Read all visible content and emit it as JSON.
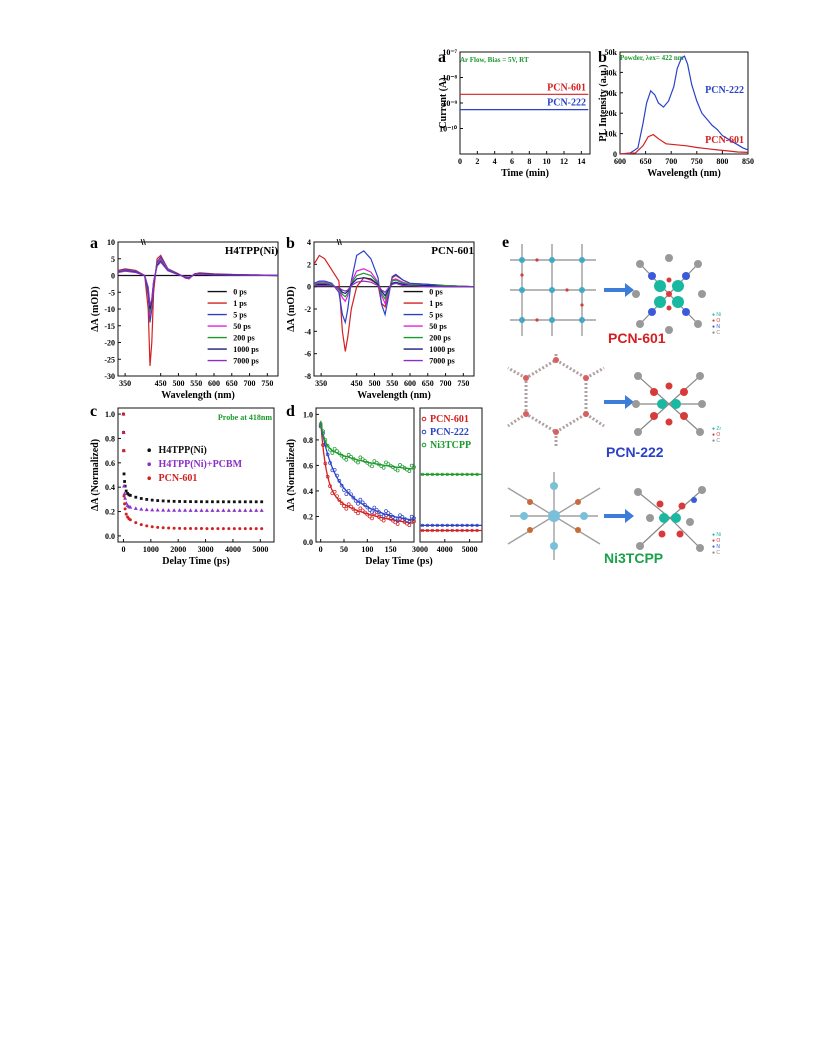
{
  "top_panels": {
    "a": {
      "letter": "a",
      "note": "Ar Flow, Bias = 5V, RT"
    },
    "b": {
      "letter": "b",
      "note": "Powder, λex= 422 nm"
    }
  },
  "bottom_panels": {
    "a": {
      "letter": "a",
      "title": "H4TPP(Ni)"
    },
    "b": {
      "letter": "b",
      "title": "PCN-601"
    },
    "c": {
      "letter": "c",
      "note": "Probe at 418nm"
    },
    "d": {
      "letter": "d"
    },
    "e": {
      "letter": "e",
      "labels": [
        "PCN-601",
        "PCN-222",
        "Ni3TCPP"
      ],
      "label_colors": [
        "#d42020",
        "#2a42c8",
        "#19a24a"
      ]
    }
  },
  "chart_data": [
    {
      "id": "top-a",
      "type": "line",
      "xlabel": "Time (min)",
      "ylabel": "Current (A)",
      "xlim": [
        0,
        15
      ],
      "ylim_log": [
        1e-11,
        1e-07
      ],
      "yscale": "log",
      "xticks": [
        "0",
        "2",
        "4",
        "6",
        "8",
        "10",
        "12",
        "14"
      ],
      "yticks": [
        "10⁻⁷",
        "10⁻⁸",
        "10⁻⁹",
        "10⁻¹⁰"
      ],
      "series": [
        {
          "name": "PCN-601",
          "color": "#d42020",
          "x": [
            0,
            14.8
          ],
          "y": [
            2.2e-09,
            2.2e-09
          ]
        },
        {
          "name": "PCN-222",
          "color": "#2a42c8",
          "x": [
            0,
            14.8
          ],
          "y": [
            5.5e-10,
            5.5e-10
          ]
        }
      ]
    },
    {
      "id": "top-b",
      "type": "line",
      "xlabel": "Wavelength (nm)",
      "ylabel": "PL Intensity (a.u.)",
      "xlim": [
        600,
        850
      ],
      "ylim": [
        0,
        50000
      ],
      "xticks": [
        "600",
        "650",
        "700",
        "750",
        "800",
        "850"
      ],
      "yticks": [
        "0",
        "10k",
        "20k",
        "30k",
        "40k",
        "50k"
      ],
      "series": [
        {
          "name": "PCN-222",
          "color": "#2a42c8",
          "x": [
            600,
            620,
            635,
            645,
            652,
            660,
            668,
            675,
            685,
            695,
            705,
            712,
            720,
            726,
            732,
            740,
            750,
            760,
            770,
            780,
            790,
            800,
            810,
            820,
            830,
            840,
            850
          ],
          "y": [
            0,
            500,
            3000,
            15000,
            25000,
            31000,
            29000,
            25000,
            23000,
            26000,
            33000,
            42000,
            47000,
            48000,
            44000,
            34000,
            26000,
            20000,
            17000,
            14000,
            12000,
            9000,
            7500,
            6000,
            4500,
            3000,
            2000
          ]
        },
        {
          "name": "PCN-601",
          "color": "#d42020",
          "x": [
            600,
            630,
            645,
            655,
            665,
            675,
            690,
            710,
            730,
            750,
            770,
            790,
            810,
            830,
            850
          ],
          "y": [
            0,
            500,
            4000,
            8500,
            9500,
            7500,
            5000,
            4500,
            4000,
            3200,
            2600,
            2000,
            1500,
            1000,
            800
          ]
        }
      ]
    },
    {
      "id": "bottom-a",
      "type": "line",
      "xlabel": "Wavelength (nm)",
      "ylabel": "ΔA (mOD)",
      "xlim": [
        330,
        780
      ],
      "ylim": [
        -30,
        10
      ],
      "xticks": [
        "350",
        "450",
        "500",
        "550",
        "600",
        "650",
        "700",
        "750"
      ],
      "yticks": [
        "10",
        "5",
        "0",
        "-5",
        "-10",
        "-15",
        "-20",
        "-25",
        "-30"
      ],
      "legend": [
        "0 ps",
        "1 ps",
        "5 ps",
        "50 ps",
        "200 ps",
        "1000 ps",
        "7000 ps"
      ],
      "series": [
        {
          "name": "0 ps",
          "color": "#111111",
          "x": [
            330,
            400,
            430,
            500,
            560,
            640,
            780
          ],
          "y": [
            0,
            0,
            0,
            0,
            0,
            0,
            0
          ]
        },
        {
          "name": "1 ps",
          "color": "#d42020",
          "x": [
            330,
            350,
            380,
            405,
            415,
            420,
            425,
            430,
            440,
            450,
            470,
            500,
            520,
            530,
            545,
            560,
            600,
            650,
            700,
            780
          ],
          "y": [
            1.5,
            2,
            1.5,
            0,
            -10,
            -27,
            -20,
            -5,
            5,
            6,
            2,
            0.5,
            -0.8,
            -1,
            0.5,
            0.8,
            0.5,
            0.3,
            0.2,
            0
          ]
        },
        {
          "name": "5 ps",
          "color": "#2a42c8",
          "x": [
            330,
            350,
            380,
            405,
            415,
            420,
            425,
            430,
            440,
            450,
            470,
            500,
            520,
            530,
            545,
            560,
            600,
            650,
            700,
            780
          ],
          "y": [
            1.3,
            1.8,
            1.3,
            0,
            -6,
            -14,
            -10,
            -3,
            4,
            5.5,
            2,
            0.4,
            -0.7,
            -0.9,
            0.4,
            0.7,
            0.4,
            0.3,
            0.2,
            0
          ]
        },
        {
          "name": "50 ps",
          "color": "#e020e0",
          "x": [
            330,
            350,
            380,
            405,
            415,
            420,
            425,
            430,
            440,
            450,
            470,
            500,
            520,
            530,
            545,
            560,
            600,
            650,
            700,
            780
          ],
          "y": [
            1.2,
            1.6,
            1.2,
            0,
            -5,
            -12,
            -9,
            -2.5,
            3.5,
            5,
            1.8,
            0.3,
            -0.6,
            -0.8,
            0.4,
            0.6,
            0.3,
            0.2,
            0.1,
            0
          ]
        },
        {
          "name": "200 ps",
          "color": "#1a9a2a",
          "x": [
            330,
            350,
            380,
            405,
            415,
            420,
            425,
            430,
            440,
            450,
            470,
            500,
            520,
            530,
            545,
            560,
            600,
            650,
            700,
            780
          ],
          "y": [
            1.1,
            1.5,
            1.1,
            0,
            -4.5,
            -11,
            -8,
            -2,
            3.2,
            4.5,
            1.6,
            0.3,
            -0.5,
            -0.7,
            0.3,
            0.5,
            0.3,
            0.2,
            0.1,
            0
          ]
        },
        {
          "name": "1000 ps",
          "color": "#1a1a80",
          "x": [
            330,
            350,
            380,
            405,
            415,
            420,
            425,
            430,
            440,
            450,
            470,
            500,
            520,
            530,
            545,
            560,
            600,
            650,
            700,
            780
          ],
          "y": [
            1,
            1.4,
            1,
            0,
            -4,
            -10,
            -7.5,
            -2,
            3,
            4.2,
            1.5,
            0.3,
            -0.5,
            -0.6,
            0.3,
            0.5,
            0.3,
            0.2,
            0.1,
            0
          ]
        },
        {
          "name": "7000 ps",
          "color": "#8a30c8",
          "x": [
            330,
            350,
            380,
            405,
            415,
            420,
            425,
            430,
            440,
            450,
            470,
            500,
            520,
            530,
            545,
            560,
            600,
            650,
            700,
            780
          ],
          "y": [
            0.9,
            1.3,
            0.9,
            0,
            -3.5,
            -9,
            -7,
            -1.8,
            2.8,
            4,
            1.4,
            0.2,
            -0.4,
            -0.5,
            0.3,
            0.4,
            0.2,
            0.1,
            0.1,
            0
          ]
        }
      ]
    },
    {
      "id": "bottom-b",
      "type": "line",
      "xlabel": "Wavelength (nm)",
      "ylabel": "ΔA (mOD)",
      "xlim": [
        330,
        780
      ],
      "ylim": [
        -8,
        4
      ],
      "xticks": [
        "350",
        "450",
        "500",
        "550",
        "600",
        "650",
        "700",
        "750"
      ],
      "yticks": [
        "4",
        "2",
        "0",
        "-2",
        "-4",
        "-6",
        "-8"
      ],
      "legend": [
        "0 ps",
        "1 ps",
        "5 ps",
        "50 ps",
        "200 ps",
        "1000 ps",
        "7000 ps"
      ],
      "series": [
        {
          "name": "0 ps",
          "color": "#111111",
          "x": [
            330,
            450,
            600,
            780
          ],
          "y": [
            0,
            0,
            0,
            0
          ]
        },
        {
          "name": "1 ps",
          "color": "#d42020",
          "x": [
            330,
            345,
            360,
            380,
            400,
            410,
            418,
            425,
            435,
            450,
            470,
            490,
            510,
            520,
            530,
            540,
            550,
            560,
            580,
            600,
            650,
            700,
            780
          ],
          "y": [
            2,
            2.8,
            2.5,
            1.5,
            0.5,
            -4,
            -5.8,
            -4.5,
            -2,
            0,
            0.8,
            0.6,
            0.2,
            -1.5,
            -1.8,
            -0.5,
            0.8,
            1,
            0.6,
            0.3,
            0.2,
            0.1,
            0
          ]
        },
        {
          "name": "5 ps",
          "color": "#2a42c8",
          "x": [
            330,
            345,
            360,
            380,
            400,
            410,
            418,
            425,
            435,
            450,
            470,
            490,
            510,
            520,
            530,
            540,
            550,
            560,
            580,
            600,
            650,
            700,
            780
          ],
          "y": [
            0.3,
            0.5,
            0.5,
            0.3,
            -0.5,
            -2.5,
            -3.2,
            -2,
            0.5,
            2.8,
            3.2,
            2.5,
            0.8,
            -1.6,
            -2.5,
            -0.8,
            0.9,
            1.1,
            0.6,
            0.3,
            0.2,
            0.1,
            0
          ]
        },
        {
          "name": "50 ps",
          "color": "#e020e0",
          "x": [
            330,
            345,
            360,
            380,
            400,
            410,
            418,
            425,
            435,
            450,
            470,
            490,
            510,
            520,
            530,
            540,
            550,
            560,
            580,
            600,
            650,
            700,
            780
          ],
          "y": [
            0.2,
            0.4,
            0.4,
            0.2,
            -0.3,
            -1,
            -1.3,
            -0.8,
            0.4,
            1.4,
            1.6,
            1.3,
            0.4,
            -0.8,
            -1.5,
            -0.4,
            0.6,
            0.7,
            0.4,
            0.2,
            0.1,
            0.1,
            0
          ]
        },
        {
          "name": "200 ps",
          "color": "#1a9a2a",
          "x": [
            330,
            345,
            360,
            380,
            400,
            410,
            418,
            425,
            435,
            450,
            470,
            490,
            510,
            520,
            530,
            540,
            550,
            560,
            580,
            600,
            650,
            700,
            780
          ],
          "y": [
            0.2,
            0.3,
            0.3,
            0.2,
            -0.2,
            -0.7,
            -0.9,
            -0.6,
            0.3,
            1,
            1.2,
            1,
            0.3,
            -0.6,
            -1.1,
            -0.3,
            0.5,
            0.6,
            0.3,
            0.2,
            0.1,
            0.1,
            0
          ]
        },
        {
          "name": "1000 ps",
          "color": "#1a1a80",
          "x": [
            330,
            345,
            360,
            380,
            400,
            410,
            418,
            425,
            435,
            450,
            470,
            490,
            510,
            520,
            530,
            540,
            550,
            560,
            580,
            600,
            650,
            700,
            780
          ],
          "y": [
            0.1,
            0.2,
            0.2,
            0.1,
            -0.1,
            -0.5,
            -0.6,
            -0.4,
            0.2,
            0.7,
            0.8,
            0.7,
            0.2,
            -0.4,
            -0.8,
            -0.2,
            0.3,
            0.4,
            0.2,
            0.1,
            0.1,
            0,
            0
          ]
        },
        {
          "name": "7000 ps",
          "color": "#8a30c8",
          "x": [
            330,
            345,
            360,
            380,
            400,
            410,
            418,
            425,
            435,
            450,
            470,
            490,
            510,
            520,
            530,
            540,
            550,
            560,
            580,
            600,
            650,
            700,
            780
          ],
          "y": [
            0.1,
            0.1,
            0.1,
            0.1,
            -0.1,
            -0.3,
            -0.4,
            -0.3,
            0.1,
            0.4,
            0.5,
            0.4,
            0.1,
            -0.3,
            -0.5,
            -0.1,
            0.2,
            0.3,
            0.1,
            0.1,
            0,
            0,
            0
          ]
        }
      ]
    },
    {
      "id": "bottom-c",
      "type": "scatter",
      "xlabel": "Delay Time (ps)",
      "ylabel": "ΔA (Normalized)",
      "xlim": [
        -200,
        5500
      ],
      "ylim": [
        -0.05,
        1.05
      ],
      "xticks": [
        "0",
        "1000",
        "2000",
        "3000",
        "4000",
        "5000"
      ],
      "yticks": [
        "0.0",
        "0.2",
        "0.4",
        "0.6",
        "0.8",
        "1.0"
      ],
      "legend": [
        "H4TPP(Ni)",
        "H4TPP(Ni)+PCBM",
        "PCN-601"
      ],
      "series": [
        {
          "name": "H4TPP(Ni)",
          "color": "#111111",
          "marker": "square",
          "plateau": 0.28,
          "amp": 0.08,
          "tau": 600
        },
        {
          "name": "H4TPP(Ni)+PCBM",
          "color": "#8a30c8",
          "marker": "triangle",
          "plateau": 0.21,
          "amp": 0.05,
          "tau": 400
        },
        {
          "name": "PCN-601",
          "color": "#d42020",
          "marker": "circle",
          "plateau": 0.06,
          "amp": 0.12,
          "tau": 500
        }
      ]
    },
    {
      "id": "bottom-d",
      "type": "scatter",
      "xlabel": "Delay Time (ps)",
      "ylabel": "ΔA (Normalized)",
      "xlim_left": [
        -10,
        200
      ],
      "xlim_right": [
        3000,
        5500
      ],
      "ylim": [
        0,
        1.05
      ],
      "xticks": [
        "0",
        "50",
        "100",
        "150",
        "3000",
        "4000",
        "5000"
      ],
      "yticks": [
        "0.0",
        "0.2",
        "0.4",
        "0.6",
        "0.8",
        "1.0"
      ],
      "legend": [
        "PCN-601",
        "PCN-222",
        "Ni3TCPP"
      ],
      "series": [
        {
          "name": "PCN-601",
          "color": "#d42020",
          "plateau": 0.09,
          "amp1": 0.55,
          "tau1": 12,
          "amp2": 0.3,
          "tau2": 120
        },
        {
          "name": "PCN-222",
          "color": "#2a42c8",
          "plateau": 0.13,
          "amp1": 0.3,
          "tau1": 20,
          "amp2": 0.5,
          "tau2": 80
        },
        {
          "name": "Ni3TCPP",
          "color": "#1a9a2a",
          "plateau": 0.53,
          "amp1": 0.2,
          "tau1": 8,
          "amp2": 0.22,
          "tau2": 120
        }
      ]
    }
  ]
}
